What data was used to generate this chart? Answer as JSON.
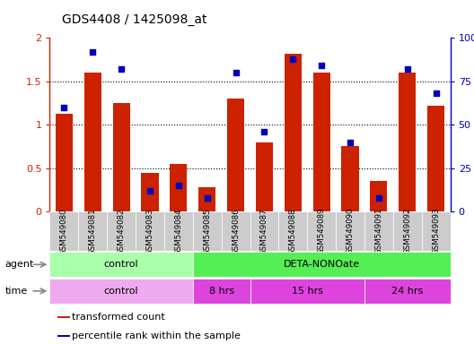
{
  "title": "GDS4408 / 1425098_at",
  "samples": [
    "GSM549080",
    "GSM549081",
    "GSM549082",
    "GSM549083",
    "GSM549084",
    "GSM549085",
    "GSM549086",
    "GSM549087",
    "GSM549088",
    "GSM549089",
    "GSM549090",
    "GSM549091",
    "GSM549092",
    "GSM549093"
  ],
  "transformed_count": [
    1.13,
    1.6,
    1.25,
    0.45,
    0.55,
    0.28,
    1.3,
    0.8,
    1.82,
    1.6,
    0.75,
    0.35,
    1.6,
    1.22
  ],
  "percentile_rank": [
    60,
    92,
    82,
    12,
    15,
    8,
    80,
    46,
    88,
    84,
    40,
    8,
    82,
    68
  ],
  "bar_color": "#cc2200",
  "dot_color": "#0000bb",
  "ylim_left": [
    0,
    2
  ],
  "ylim_right": [
    0,
    100
  ],
  "yticks_left": [
    0,
    0.5,
    1.0,
    1.5,
    2.0
  ],
  "yticks_right": [
    0,
    25,
    50,
    75,
    100
  ],
  "yticklabels_left": [
    "0",
    "0.5",
    "1",
    "1.5",
    "2"
  ],
  "yticklabels_right": [
    "0",
    "25",
    "50",
    "75",
    "100%"
  ],
  "agent_groups": [
    {
      "label": "control",
      "start": 0,
      "end": 5,
      "color": "#aaffaa"
    },
    {
      "label": "DETA-NONOate",
      "start": 5,
      "end": 14,
      "color": "#55ee55"
    }
  ],
  "time_groups": [
    {
      "label": "control",
      "start": 0,
      "end": 5,
      "color": "#eeaaee"
    },
    {
      "label": "8 hrs",
      "start": 5,
      "end": 7,
      "color": "#dd44dd"
    },
    {
      "label": "15 hrs",
      "start": 7,
      "end": 11,
      "color": "#dd44dd"
    },
    {
      "label": "24 hrs",
      "start": 11,
      "end": 14,
      "color": "#dd44dd"
    }
  ],
  "legend_items": [
    {
      "label": "transformed count",
      "color": "#cc2200",
      "marker": "square"
    },
    {
      "label": "percentile rank within the sample",
      "color": "#0000bb",
      "marker": "square"
    }
  ],
  "left_axis_color": "#cc2200",
  "right_axis_color": "#0000bb",
  "sample_label_bg": "#cccccc",
  "fig_width": 5.28,
  "fig_height": 3.84,
  "dpi": 100
}
